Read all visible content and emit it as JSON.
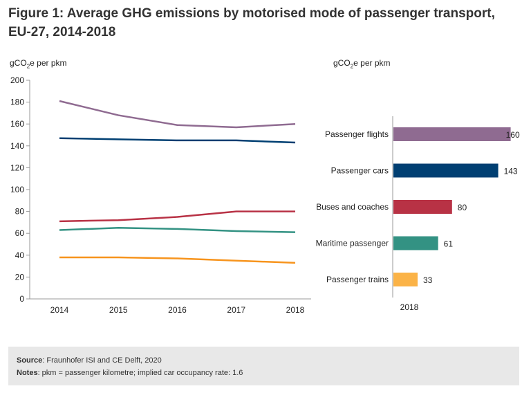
{
  "title": "Figure 1: Average GHG emissions by motorised mode of passenger transport, EU-27, 2014-2018",
  "chart_data": [
    {
      "type": "line",
      "ylabel_main": "gCO",
      "ylabel_sub": "2",
      "ylabel_rest": "e per pkm",
      "x": [
        "2014",
        "2015",
        "2016",
        "2017",
        "2018"
      ],
      "ylim": [
        0,
        200
      ],
      "yticks": [
        0,
        20,
        40,
        60,
        80,
        100,
        120,
        140,
        160,
        180,
        200
      ],
      "grid": false,
      "series": [
        {
          "name": "Passenger flights",
          "color": "#8f6b91",
          "values": [
            181,
            168,
            159,
            157,
            160
          ]
        },
        {
          "name": "Passenger cars",
          "color": "#003f72",
          "values": [
            147,
            146,
            145,
            145,
            143
          ]
        },
        {
          "name": "Buses and coaches",
          "color": "#b83245",
          "values": [
            71,
            72,
            75,
            80,
            80
          ]
        },
        {
          "name": "Maritime passenger",
          "color": "#339283",
          "values": [
            63,
            65,
            64,
            62,
            61
          ]
        },
        {
          "name": "Passenger trains",
          "color": "#f7941d",
          "values": [
            38,
            38,
            37,
            35,
            33
          ]
        }
      ]
    },
    {
      "type": "bar",
      "orientation": "horizontal",
      "ylabel_main": "gCO",
      "ylabel_sub": "2",
      "ylabel_rest": "e per pkm",
      "xlabel": "2018",
      "categories": [
        "Passenger flights",
        "Passenger cars",
        "Buses and coaches",
        "Maritime passenger",
        "Passenger trains"
      ],
      "values": [
        160,
        143,
        80,
        61,
        33
      ],
      "colors": [
        "#8f6b91",
        "#003f72",
        "#b83245",
        "#339283",
        "#fbb347"
      ]
    }
  ],
  "footer": {
    "source_label": "Source",
    "source_text": ": Fraunhofer ISI and CE Delft, 2020",
    "notes_label": "Notes",
    "notes_text": ": pkm = passenger kilometre; implied car occupancy rate: 1.6"
  }
}
